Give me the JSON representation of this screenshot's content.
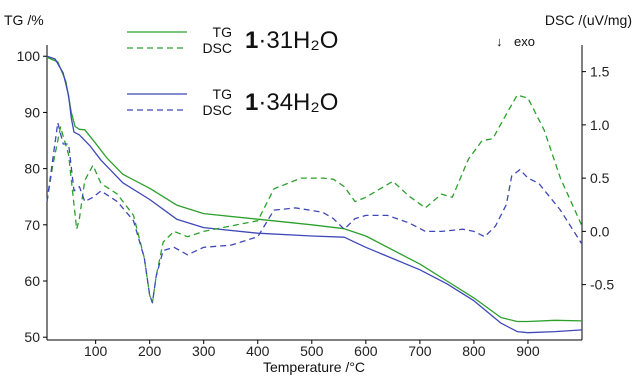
{
  "chart_data": {
    "type": "line",
    "title": "",
    "xlabel": "Temperature /°C",
    "ylabel_left": "TG /%",
    "ylabel_right": "DSC /(uV/mg)",
    "exo_label": "exo",
    "exo_arrow": "↓",
    "xlim": [
      10,
      1000
    ],
    "ylim_left": [
      49.5,
      102
    ],
    "ylim_right": [
      -1.02,
      1.75
    ],
    "xticks": [
      100,
      200,
      300,
      400,
      500,
      600,
      700,
      800,
      900
    ],
    "yticks_left": [
      50,
      60,
      70,
      80,
      90,
      100
    ],
    "yticks_right": [
      -0.5,
      0.0,
      0.5,
      1.0,
      1.5
    ],
    "yticks_right_labels": [
      "-0.5",
      "0.0",
      "0.5",
      "1.0",
      "1.5"
    ],
    "grid": false,
    "legend": [
      {
        "sample_prefix": "1",
        "sample_formula": "·31H₂O",
        "entries": [
          {
            "label": "TG",
            "series": "TG-31",
            "style": "solid"
          },
          {
            "label": "DSC",
            "series": "DSC-31",
            "style": "dashed"
          }
        ]
      },
      {
        "sample_prefix": "1",
        "sample_formula": "·34H₂O",
        "entries": [
          {
            "label": "TG",
            "series": "TG-34",
            "style": "solid"
          },
          {
            "label": "DSC",
            "series": "DSC-34",
            "style": "dashed"
          }
        ]
      }
    ],
    "series": [
      {
        "id": "TG-31",
        "axis": "left",
        "color": "#2ca02c",
        "dash": false,
        "x": [
          10,
          30,
          45,
          55,
          62,
          70,
          80,
          100,
          120,
          150,
          200,
          250,
          300,
          400,
          500,
          560,
          600,
          700,
          750,
          800,
          850,
          880,
          900,
          950,
          1000
        ],
        "y": [
          99.8,
          99.0,
          95.5,
          90,
          87.5,
          87.0,
          86.9,
          84.5,
          82,
          79,
          76.5,
          73.5,
          72,
          71,
          70,
          69.3,
          68,
          63,
          60,
          57,
          53.5,
          52.8,
          52.8,
          53,
          52.9
        ]
      },
      {
        "id": "TG-34",
        "axis": "left",
        "color": "#3f48b8",
        "dash": false,
        "x": [
          10,
          25,
          40,
          50,
          55,
          60,
          70,
          90,
          110,
          150,
          200,
          250,
          300,
          400,
          500,
          560,
          600,
          700,
          750,
          800,
          850,
          880,
          900,
          950,
          1000
        ],
        "y": [
          100,
          99.5,
          97,
          93,
          89,
          86.5,
          86.0,
          84,
          81.5,
          77.5,
          74.5,
          71,
          69.5,
          68.5,
          68,
          67.8,
          66,
          62,
          59.5,
          56.5,
          52.5,
          51,
          50.8,
          51,
          51.3
        ]
      },
      {
        "id": "DSC-31",
        "axis": "right",
        "color": "#2ca02c",
        "dash": true,
        "x": [
          10,
          20,
          35,
          50,
          60,
          65,
          70,
          80,
          95,
          110,
          140,
          170,
          190,
          200,
          205,
          212,
          225,
          245,
          270,
          300,
          350,
          400,
          430,
          480,
          520,
          540,
          560,
          580,
          600,
          650,
          680,
          710,
          740,
          760,
          790,
          815,
          835,
          860,
          880,
          900,
          930,
          960,
          1000
        ],
        "y": [
          0.28,
          0.6,
          0.98,
          0.72,
          0.25,
          0.02,
          0.12,
          0.48,
          0.62,
          0.45,
          0.35,
          0.15,
          -0.25,
          -0.6,
          -0.67,
          -0.42,
          -0.1,
          0.0,
          -0.05,
          0.0,
          0.05,
          0.1,
          0.4,
          0.5,
          0.5,
          0.49,
          0.42,
          0.28,
          0.32,
          0.47,
          0.33,
          0.22,
          0.35,
          0.32,
          0.68,
          0.85,
          0.87,
          1.1,
          1.28,
          1.25,
          0.95,
          0.5,
          0.05
        ]
      },
      {
        "id": "DSC-34",
        "axis": "right",
        "color": "#3f48b8",
        "dash": true,
        "x": [
          10,
          20,
          30,
          40,
          50,
          60,
          70,
          80,
          95,
          110,
          140,
          170,
          190,
          200,
          205,
          212,
          225,
          245,
          270,
          300,
          350,
          400,
          430,
          470,
          520,
          540,
          560,
          580,
          600,
          640,
          680,
          710,
          740,
          780,
          800,
          820,
          840,
          860,
          870,
          885,
          900,
          920,
          960,
          1000
        ],
        "y": [
          0.28,
          0.65,
          1.02,
          0.82,
          0.82,
          0.38,
          0.42,
          0.28,
          0.32,
          0.38,
          0.28,
          0.1,
          -0.25,
          -0.6,
          -0.67,
          -0.42,
          -0.18,
          -0.15,
          -0.22,
          -0.15,
          -0.13,
          -0.05,
          0.2,
          0.22,
          0.18,
          0.12,
          0.02,
          0.12,
          0.15,
          0.15,
          0.08,
          0.0,
          0.0,
          0.02,
          0.0,
          -0.05,
          0.05,
          0.25,
          0.52,
          0.58,
          0.5,
          0.45,
          0.2,
          -0.12
        ]
      }
    ]
  }
}
